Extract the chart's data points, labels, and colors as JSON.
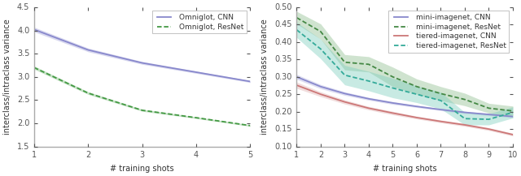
{
  "left": {
    "xlabel": "# training shots",
    "ylabel": "interclass/intraclass variance",
    "xlim": [
      1,
      5
    ],
    "ylim": [
      1.5,
      4.5
    ],
    "yticks": [
      1.5,
      2.0,
      2.5,
      3.0,
      3.5,
      4.0,
      4.5
    ],
    "xticks": [
      1,
      2,
      3,
      4,
      5
    ],
    "cnn": {
      "label": "Omniglot, CNN",
      "color": "#8888cc",
      "fill_color": "#aaaadd",
      "mean": [
        4.02,
        3.58,
        3.3,
        3.1,
        2.9
      ],
      "std": [
        0.05,
        0.04,
        0.03,
        0.025,
        0.022
      ]
    },
    "resnet": {
      "label": "Omniglot, ResNet",
      "color": "#449944",
      "fill_color": "#77bb77",
      "mean": [
        3.2,
        2.65,
        2.28,
        2.12,
        1.95
      ],
      "std": [
        0.035,
        0.028,
        0.022,
        0.018,
        0.016
      ]
    }
  },
  "right": {
    "xlabel": "# training shots",
    "ylabel": "interclass/intraclass variance",
    "xlim": [
      1,
      10
    ],
    "ylim": [
      0.1,
      0.5
    ],
    "yticks": [
      0.1,
      0.15,
      0.2,
      0.25,
      0.3,
      0.35,
      0.4,
      0.45,
      0.5
    ],
    "xticks": [
      1,
      2,
      3,
      4,
      5,
      6,
      7,
      8,
      9,
      10
    ],
    "mini_cnn": {
      "label": "mini-imagenet, CNN",
      "color": "#8888cc",
      "fill_color": "#aaaadd",
      "mean": [
        0.3,
        0.272,
        0.252,
        0.237,
        0.225,
        0.215,
        0.206,
        0.198,
        0.192,
        0.186
      ],
      "std": [
        0.007,
        0.006,
        0.005,
        0.004,
        0.004,
        0.003,
        0.003,
        0.003,
        0.003,
        0.003
      ]
    },
    "mini_resnet": {
      "label": "mini-imagenet, ResNet",
      "color": "#448844",
      "fill_color": "#88bb88",
      "mean": [
        0.47,
        0.43,
        0.342,
        0.336,
        0.3,
        0.272,
        0.252,
        0.235,
        0.21,
        0.202
      ],
      "std": [
        0.018,
        0.022,
        0.022,
        0.022,
        0.028,
        0.022,
        0.02,
        0.018,
        0.014,
        0.014
      ]
    },
    "tiered_cnn": {
      "label": "tiered-imagenet, CNN",
      "color": "#cc7777",
      "fill_color": "#ddaaaa",
      "mean": [
        0.276,
        0.25,
        0.228,
        0.21,
        0.196,
        0.183,
        0.172,
        0.162,
        0.15,
        0.134
      ],
      "std": [
        0.009,
        0.007,
        0.006,
        0.005,
        0.005,
        0.004,
        0.004,
        0.004,
        0.004,
        0.004
      ]
    },
    "tiered_resnet": {
      "label": "tiered-imagenet, ResNet",
      "color": "#33aa99",
      "fill_color": "#77ccbb",
      "mean": [
        0.435,
        0.38,
        0.305,
        0.288,
        0.268,
        0.25,
        0.232,
        0.18,
        0.178,
        0.198
      ],
      "std": [
        0.022,
        0.028,
        0.028,
        0.028,
        0.028,
        0.024,
        0.024,
        0.018,
        0.016,
        0.016
      ]
    }
  }
}
